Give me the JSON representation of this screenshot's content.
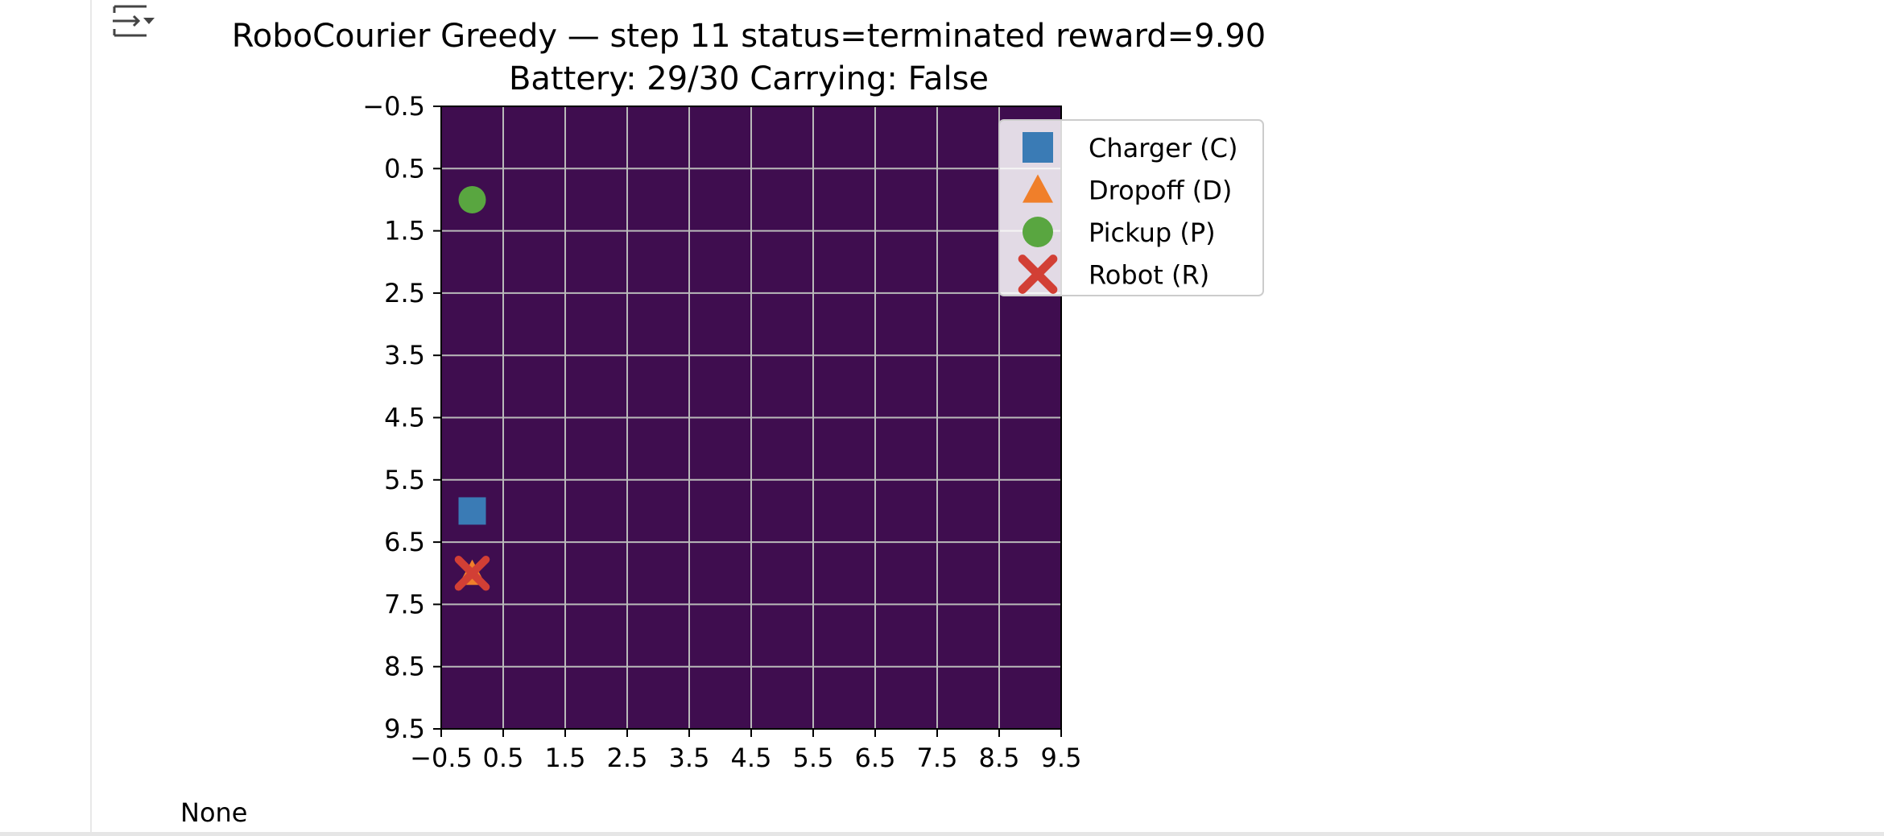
{
  "output_toggle": {
    "icon": "output-collapse-icon"
  },
  "cell_output": {
    "text": "None"
  },
  "colors": {
    "background": "#3f0d4f",
    "grid": "#b9b9b9",
    "charger": "#3a7bb5",
    "dropoff": "#f07f2a",
    "pickup": "#59a640",
    "robot": "#d23f35"
  },
  "chart_data": {
    "type": "scatter",
    "title": "RoboCourier Greedy — step 11  status=terminated  reward=9.90",
    "subtitle": "Battery: 29/30  Carrying: False",
    "xlabel": "",
    "ylabel": "",
    "xlim": [
      -0.5,
      9.5
    ],
    "ylim": [
      9.5,
      -0.5
    ],
    "y_inverted": true,
    "grid": true,
    "legend_position": "top-right",
    "x_ticks": [
      "−0.5",
      "0.5",
      "1.5",
      "2.5",
      "3.5",
      "4.5",
      "5.5",
      "6.5",
      "7.5",
      "8.5",
      "9.5"
    ],
    "y_ticks": [
      "−0.5",
      "0.5",
      "1.5",
      "2.5",
      "3.5",
      "4.5",
      "5.5",
      "6.5",
      "7.5",
      "8.5",
      "9.5"
    ],
    "series": [
      {
        "name": "Charger (C)",
        "marker": "square",
        "color": "#3a7bb5",
        "points": [
          [
            0,
            6
          ]
        ]
      },
      {
        "name": "Dropoff (D)",
        "marker": "triangle",
        "color": "#f07f2a",
        "points": [
          [
            0,
            7
          ]
        ]
      },
      {
        "name": "Pickup (P)",
        "marker": "circle",
        "color": "#59a640",
        "points": [
          [
            0,
            1
          ]
        ]
      },
      {
        "name": "Robot (R)",
        "marker": "x",
        "color": "#d23f35",
        "points": [
          [
            0,
            7
          ]
        ]
      }
    ]
  }
}
